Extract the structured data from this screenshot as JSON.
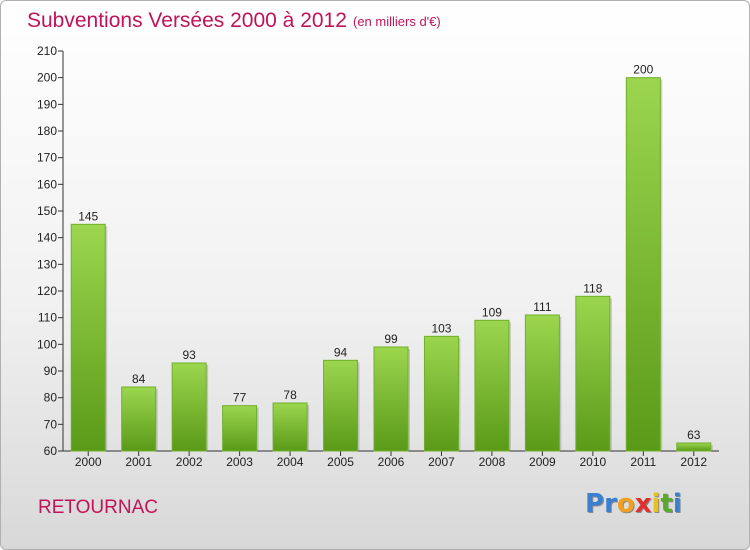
{
  "title": "Subventions Versées 2000 à 2012",
  "subtitle": "(en milliers d'€)",
  "commune": "RETOURNAC",
  "logo": {
    "letters": [
      "P",
      "r",
      "o",
      "x",
      "i",
      "t",
      "i"
    ],
    "colors": [
      "#3a7fd0",
      "#3a7fd0",
      "#f0a020",
      "#e03030",
      "#e8c020",
      "#5aaa2a",
      "#3a7fd0"
    ]
  },
  "colors": {
    "accent": "#c0145a",
    "bar_light": "#9cd64f",
    "bar_dark": "#5a9a18"
  },
  "chart_data": {
    "type": "bar",
    "categories": [
      "2000",
      "2001",
      "2002",
      "2003",
      "2004",
      "2005",
      "2006",
      "2007",
      "2008",
      "2009",
      "2010",
      "2011",
      "2012"
    ],
    "values": [
      145,
      84,
      93,
      77,
      78,
      94,
      99,
      103,
      109,
      111,
      118,
      200,
      63
    ],
    "ylim": [
      60,
      210
    ],
    "yticks": [
      60,
      70,
      80,
      90,
      100,
      110,
      120,
      130,
      140,
      150,
      160,
      170,
      180,
      190,
      200,
      210
    ],
    "grid": false
  }
}
